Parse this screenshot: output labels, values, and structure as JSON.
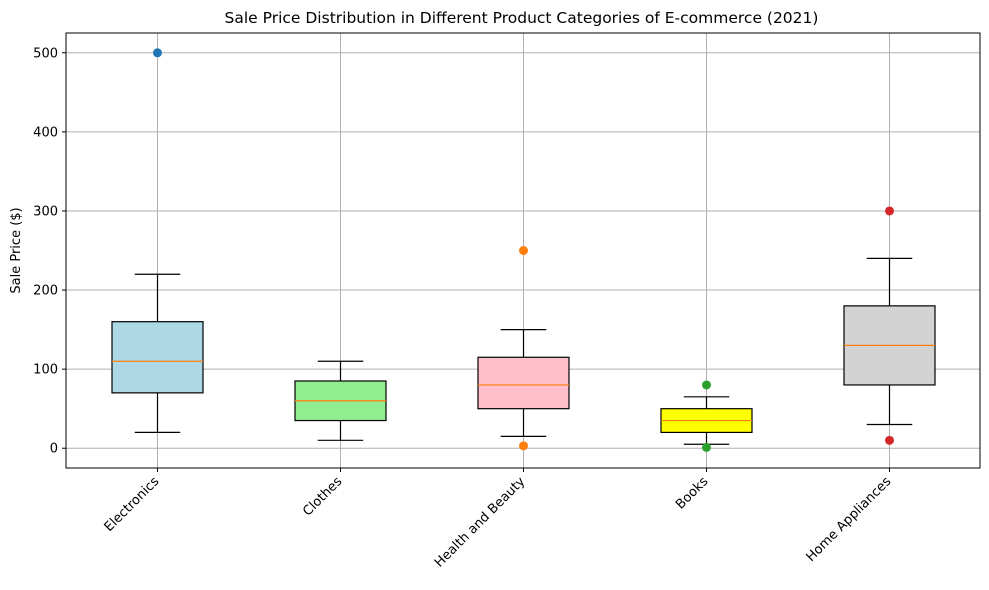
{
  "chart_data": {
    "type": "boxplot",
    "title": "Sale Price Distribution in Different Product Categories of E-commerce (2021)",
    "xlabel": "",
    "ylabel": "Sale Price ($)",
    "ylim": [
      -25,
      525
    ],
    "yticks": [
      "0",
      "100",
      "200",
      "300",
      "400",
      "500"
    ],
    "grid": true,
    "categories": [
      "Electronics",
      "Clothes",
      "Health and Beauty",
      "Books",
      "Home Appliances"
    ],
    "boxes": [
      {
        "category": "Electronics",
        "whisker_low": 20,
        "q1": 70,
        "median": 110,
        "q3": 160,
        "whisker_high": 220,
        "outliers": [
          500
        ],
        "box_color": "#add8e6",
        "outlier_color": "#1f77b4"
      },
      {
        "category": "Clothes",
        "whisker_low": 10,
        "q1": 35,
        "median": 60,
        "q3": 85,
        "whisker_high": 110,
        "outliers": [],
        "box_color": "#90ee90",
        "outlier_color": "#ff7f0e"
      },
      {
        "category": "Health and Beauty",
        "whisker_low": 15,
        "q1": 50,
        "median": 80,
        "q3": 115,
        "whisker_high": 150,
        "outliers": [
          250,
          3
        ],
        "box_color": "#ffc0cb",
        "outlier_color": "#ff7f0e"
      },
      {
        "category": "Books",
        "whisker_low": 5,
        "q1": 20,
        "median": 35,
        "q3": 50,
        "whisker_high": 65,
        "outliers": [
          80,
          1
        ],
        "box_color": "#ffff00",
        "outlier_color": "#2ca02c"
      },
      {
        "category": "Home Appliances",
        "whisker_low": 30,
        "q1": 80,
        "median": 130,
        "q3": 180,
        "whisker_high": 240,
        "outliers": [
          300,
          10
        ],
        "box_color": "#d3d3d3",
        "outlier_color": "#d62728"
      }
    ],
    "median_color": "#ff7f0e",
    "grid_color": "#b0b0b0"
  }
}
